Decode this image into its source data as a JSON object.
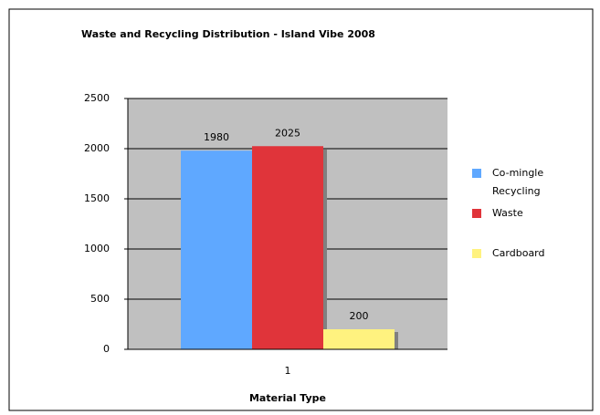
{
  "chart_data": {
    "type": "bar",
    "title": "Waste and Recycling Distribution - Island Vibe 2008",
    "x_label": "Material Type",
    "categories": [
      "1"
    ],
    "series": [
      {
        "name": "Co-mingle Recycling",
        "color": "#5fa8ff",
        "values": [
          1980
        ]
      },
      {
        "name": "Waste",
        "color": "#e0343a",
        "values": [
          2025
        ]
      },
      {
        "name": "Cardboard",
        "color": "#fff27f",
        "values": [
          200
        ]
      }
    ],
    "ylim": [
      0,
      2500
    ],
    "yticks": [
      0,
      500,
      1000,
      1500,
      2000,
      2500
    ],
    "grid": true,
    "legend": "right"
  }
}
